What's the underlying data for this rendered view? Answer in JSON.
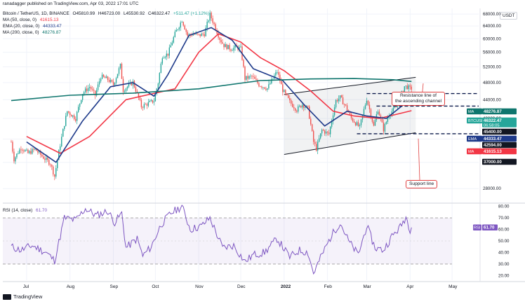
{
  "header": {
    "published": "ranadagger published on TradingView.com, Apr 03, 2022 17:01 UTC",
    "symbol_line": "Bitcoin / TetherUS, 1D, BINANCE",
    "ohlc": [
      "O45810.99",
      "H46723.00",
      "L45530.92",
      "C46322.47",
      "+511.47 (+1.12%)"
    ],
    "indicators": [
      {
        "label": "MA (50, close, 0)",
        "value": "41615.13",
        "color": "#f23645"
      },
      {
        "label": "EMA (20, close, 0)",
        "value": "44333.47",
        "color": "#1e3a8a"
      },
      {
        "label": "MA (200, close, 0)",
        "value": "48276.87",
        "color": "#0f766e"
      }
    ],
    "currency": "USDT"
  },
  "footer": {
    "brand": "TradingView"
  },
  "annotations": {
    "resistance": "Resistance line of\nthe ascending channel",
    "support": "Support line"
  },
  "colors": {
    "up": "#26a69a",
    "down": "#ef5350",
    "ma50": "#f23645",
    "ema20": "#1e3a8a",
    "ma200": "#0f766e",
    "channel": "#131722",
    "rsi": "#7e57c2"
  },
  "chart_data": [
    {
      "type": "candlestick",
      "x_ticks": [
        "Jul",
        "Aug",
        "Sep",
        "Oct",
        "Nov",
        "Dec",
        "2022",
        "Feb",
        "Mar",
        "Apr",
        "May"
      ],
      "y_scale": "log",
      "y_ticks": [
        28000,
        32000,
        36000,
        40000,
        44000,
        48000,
        52000,
        56000,
        60000,
        64000,
        68000
      ],
      "ylim": [
        26000,
        70000
      ],
      "price_path": [
        [
          "2021-06-20",
          35500
        ],
        [
          "2021-06-22",
          32500
        ],
        [
          "2021-06-27",
          34500
        ],
        [
          "2021-07-02",
          33500
        ],
        [
          "2021-07-07",
          34200
        ],
        [
          "2021-07-12",
          33000
        ],
        [
          "2021-07-18",
          31800
        ],
        [
          "2021-07-21",
          29800
        ],
        [
          "2021-07-25",
          35000
        ],
        [
          "2021-07-30",
          41500
        ],
        [
          "2021-08-05",
          40000
        ],
        [
          "2021-08-10",
          45500
        ],
        [
          "2021-08-15",
          47000
        ],
        [
          "2021-08-19",
          45000
        ],
        [
          "2021-08-23",
          49500
        ],
        [
          "2021-08-28",
          48800
        ],
        [
          "2021-09-01",
          47500
        ],
        [
          "2021-09-06",
          52300
        ],
        [
          "2021-09-08",
          46200
        ],
        [
          "2021-09-15",
          48100
        ],
        [
          "2021-09-21",
          42500
        ],
        [
          "2021-09-26",
          43200
        ],
        [
          "2021-09-30",
          43800
        ],
        [
          "2021-10-03",
          48000
        ],
        [
          "2021-10-06",
          55000
        ],
        [
          "2021-10-10",
          55500
        ],
        [
          "2021-10-15",
          61500
        ],
        [
          "2021-10-20",
          66000
        ],
        [
          "2021-10-24",
          61000
        ],
        [
          "2021-10-28",
          61500
        ],
        [
          "2021-11-01",
          61000
        ],
        [
          "2021-11-05",
          61500
        ],
        [
          "2021-11-09",
          67800
        ],
        [
          "2021-11-12",
          64500
        ],
        [
          "2021-11-16",
          60000
        ],
        [
          "2021-11-19",
          58000
        ],
        [
          "2021-11-24",
          57000
        ],
        [
          "2021-11-28",
          57500
        ],
        [
          "2021-12-01",
          57000
        ],
        [
          "2021-12-04",
          49000
        ],
        [
          "2021-12-09",
          49500
        ],
        [
          "2021-12-14",
          47500
        ],
        [
          "2021-12-20",
          46600
        ],
        [
          "2021-12-27",
          50800
        ],
        [
          "2021-12-31",
          46200
        ],
        [
          "2022-01-05",
          43500
        ],
        [
          "2022-01-10",
          41800
        ],
        [
          "2022-01-14",
          43000
        ],
        [
          "2022-01-18",
          42000
        ],
        [
          "2022-01-22",
          35500
        ],
        [
          "2022-01-24",
          34300
        ],
        [
          "2022-01-28",
          37700
        ],
        [
          "2022-02-02",
          36900
        ],
        [
          "2022-02-07",
          43800
        ],
        [
          "2022-02-10",
          44500
        ],
        [
          "2022-02-14",
          42500
        ],
        [
          "2022-02-18",
          40000
        ],
        [
          "2022-02-24",
          38200
        ],
        [
          "2022-03-01",
          44200
        ],
        [
          "2022-03-06",
          38400
        ],
        [
          "2022-03-09",
          41900
        ],
        [
          "2022-03-13",
          37800
        ],
        [
          "2022-03-17",
          40900
        ],
        [
          "2022-03-22",
          42400
        ],
        [
          "2022-03-25",
          44500
        ],
        [
          "2022-03-28",
          47100
        ],
        [
          "2022-03-30",
          47000
        ],
        [
          "2022-04-02",
          46322
        ]
      ],
      "series": [
        {
          "name": "MA (50, close, 0)",
          "points": [
            [
              "2021-07-01",
              36500
            ],
            [
              "2021-07-25",
              33500
            ],
            [
              "2021-08-15",
              36500
            ],
            [
              "2021-09-10",
              44000
            ],
            [
              "2021-10-01",
              45500
            ],
            [
              "2021-10-15",
              46500
            ],
            [
              "2021-11-01",
              56000
            ],
            [
              "2021-11-15",
              61500
            ],
            [
              "2021-12-01",
              59000
            ],
            [
              "2021-12-15",
              54500
            ],
            [
              "2022-01-01",
              51000
            ],
            [
              "2022-01-20",
              46000
            ],
            [
              "2022-02-05",
              41500
            ],
            [
              "2022-02-20",
              40500
            ],
            [
              "2022-03-10",
              40000
            ],
            [
              "2022-04-02",
              41615
            ]
          ]
        },
        {
          "name": "EMA (20, close, 0)",
          "points": [
            [
              "2021-07-01",
              35500
            ],
            [
              "2021-07-22",
              32000
            ],
            [
              "2021-08-10",
              39500
            ],
            [
              "2021-08-30",
              47000
            ],
            [
              "2021-09-15",
              48000
            ],
            [
              "2021-09-30",
              44800
            ],
            [
              "2021-10-10",
              50000
            ],
            [
              "2021-10-25",
              61000
            ],
            [
              "2021-11-10",
              63500
            ],
            [
              "2021-11-25",
              59500
            ],
            [
              "2021-12-10",
              51500
            ],
            [
              "2021-12-31",
              48500
            ],
            [
              "2022-01-15",
              43000
            ],
            [
              "2022-01-30",
              38500
            ],
            [
              "2022-02-15",
              41500
            ],
            [
              "2022-03-01",
              40500
            ],
            [
              "2022-03-15",
              40000
            ],
            [
              "2022-04-02",
              44333
            ]
          ]
        },
        {
          "name": "MA (200, close, 0)",
          "points": [
            [
              "2021-06-20",
              43800
            ],
            [
              "2021-08-01",
              45000
            ],
            [
              "2021-09-15",
              45500
            ],
            [
              "2021-11-01",
              46500
            ],
            [
              "2021-12-15",
              48500
            ],
            [
              "2022-01-20",
              48900
            ],
            [
              "2022-02-20",
              49000
            ],
            [
              "2022-03-20",
              48700
            ],
            [
              "2022-04-02",
              48277
            ]
          ]
        }
      ],
      "channel": {
        "resistance": [
          [
            "2022-01-01",
            45200
          ],
          [
            "2022-04-05",
            49300
          ]
        ],
        "support": [
          [
            "2022-01-01",
            33300
          ],
          [
            "2022-04-05",
            37200
          ]
        ]
      },
      "levels": [
        45400,
        42594,
        37000
      ],
      "price_labels": [
        {
          "name": "MA",
          "value": "48276.87",
          "color": "#0f766e"
        },
        {
          "name": "BTCUSDT",
          "value": "46322.47",
          "sub": "06:58:05",
          "color": "#26a69a"
        },
        {
          "name": "",
          "value": "45400.00",
          "color": "#131722"
        },
        {
          "name": "EMA",
          "value": "44333.47",
          "color": "#1e3a8a"
        },
        {
          "name": "",
          "value": "42594.00",
          "color": "#131722"
        },
        {
          "name": "MA",
          "value": "41615.13",
          "color": "#f23645"
        },
        {
          "name": "",
          "value": "37000.00",
          "color": "#131722"
        }
      ]
    },
    {
      "type": "line",
      "title": "RSI (14, close)",
      "value_label": "61.70",
      "y_ticks": [
        20.0,
        30.0,
        40.0,
        50.0,
        60.0,
        70.0,
        80.0
      ],
      "ylim": [
        16,
        84
      ],
      "bands": [
        30,
        70
      ],
      "points": [
        [
          "2021-06-20",
          45
        ],
        [
          "2021-06-27",
          42
        ],
        [
          "2021-07-05",
          46
        ],
        [
          "2021-07-15",
          40
        ],
        [
          "2021-07-21",
          33
        ],
        [
          "2021-07-28",
          70
        ],
        [
          "2021-08-05",
          68
        ],
        [
          "2021-08-12",
          78
        ],
        [
          "2021-08-20",
          72
        ],
        [
          "2021-08-28",
          76
        ],
        [
          "2021-09-02",
          66
        ],
        [
          "2021-09-07",
          74
        ],
        [
          "2021-09-10",
          44
        ],
        [
          "2021-09-18",
          52
        ],
        [
          "2021-09-22",
          37
        ],
        [
          "2021-09-28",
          45
        ],
        [
          "2021-10-05",
          64
        ],
        [
          "2021-10-12",
          74
        ],
        [
          "2021-10-20",
          80
        ],
        [
          "2021-10-26",
          60
        ],
        [
          "2021-11-03",
          63
        ],
        [
          "2021-11-09",
          70
        ],
        [
          "2021-11-18",
          44
        ],
        [
          "2021-11-26",
          46
        ],
        [
          "2021-12-04",
          32
        ],
        [
          "2021-12-10",
          38
        ],
        [
          "2021-12-18",
          40
        ],
        [
          "2021-12-27",
          52
        ],
        [
          "2022-01-05",
          36
        ],
        [
          "2022-01-12",
          42
        ],
        [
          "2022-01-18",
          40
        ],
        [
          "2022-01-22",
          22
        ],
        [
          "2022-01-28",
          38
        ],
        [
          "2022-02-04",
          55
        ],
        [
          "2022-02-10",
          66
        ],
        [
          "2022-02-16",
          50
        ],
        [
          "2022-02-23",
          38
        ],
        [
          "2022-03-01",
          63
        ],
        [
          "2022-03-07",
          44
        ],
        [
          "2022-03-13",
          42
        ],
        [
          "2022-03-19",
          54
        ],
        [
          "2022-03-25",
          62
        ],
        [
          "2022-03-29",
          71
        ],
        [
          "2022-04-01",
          60
        ],
        [
          "2022-04-02",
          61.7
        ]
      ]
    }
  ]
}
